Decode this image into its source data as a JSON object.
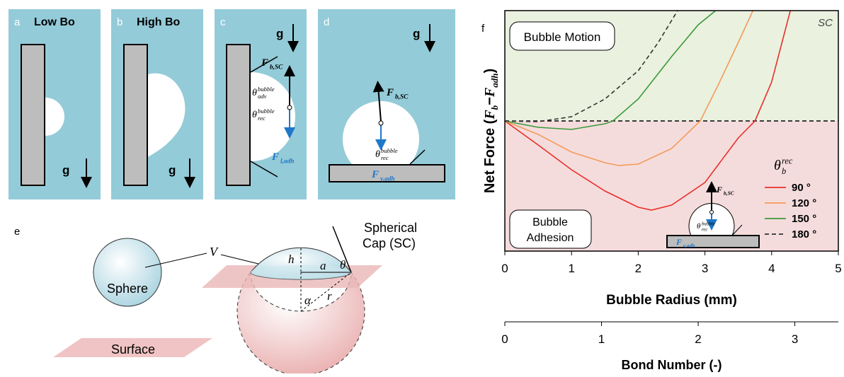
{
  "panels": {
    "a": {
      "label": "a",
      "title": "Low Bo",
      "gravity": "g"
    },
    "b": {
      "label": "b",
      "title": "High Bo",
      "gravity": "g"
    },
    "c": {
      "label": "c",
      "gravity": "g",
      "buoyancy": {
        "symbol": "F",
        "subscript": "b,SC"
      },
      "advancing": {
        "symbol": "θ",
        "superscript": "bubble",
        "subscript": "adv"
      },
      "receding": {
        "symbol": "θ",
        "superscript": "bubble",
        "subscript": "rec"
      },
      "adhesion": {
        "symbol": "F",
        "subscript": "l,adh"
      }
    },
    "d": {
      "label": "d",
      "gravity": "g",
      "buoyancy": {
        "symbol": "F",
        "subscript": "b,SC"
      },
      "receding": {
        "symbol": "θ",
        "superscript": "bubble",
        "subscript": "rec"
      },
      "adhesion": {
        "symbol": "F",
        "subscript": "v,adh"
      }
    },
    "e": {
      "label": "e",
      "sphere": "Sphere",
      "volume": "V",
      "height": "h",
      "base_radius": "a",
      "angle": "θ",
      "alpha": "α",
      "radius": "r",
      "cap": [
        "Spherical",
        "Cap (SC)"
      ],
      "surface": "Surface"
    }
  },
  "chart_data": {
    "type": "line",
    "panel_label": "f",
    "xlabel": "Bubble Radius (mm)",
    "ylabel": {
      "prefix": "Net Force (",
      "term1": {
        "symbol": "F",
        "subscript": "b"
      },
      "operator": "−",
      "term2": {
        "symbol": "F",
        "subscript": "adh"
      },
      "suffix": ")"
    },
    "xlim": [
      0,
      5
    ],
    "xticks": [
      0,
      1,
      2,
      3,
      4,
      5
    ],
    "ylim": [
      -184,
      156
    ],
    "x2label": "Bond Number (-)",
    "x2lim": [
      0,
      3.45
    ],
    "x2ticks": [
      0,
      1,
      2,
      3
    ],
    "annotations": {
      "motion": "Bubble Motion",
      "adhesion": [
        "Bubble",
        "Adhesion"
      ],
      "sc": "SC"
    },
    "region_colors": {
      "motion": "#eaf1df",
      "adhesion": "#f5dcdc"
    },
    "legend_title": {
      "symbol": "θ",
      "subscript": "b",
      "superscript": "rec"
    },
    "series": [
      {
        "name": "90 °",
        "color": "#e8302a",
        "dash": false,
        "x": [
          0,
          0.5,
          1,
          1.5,
          2,
          2.2,
          2.5,
          3,
          3.5,
          3.75,
          4,
          4.28
        ],
        "values": [
          0,
          -34,
          -69,
          -99,
          -122,
          -126,
          -119,
          -87,
          -24,
          0,
          55,
          156
        ]
      },
      {
        "name": "120 °",
        "color": "#f39a5a",
        "dash": false,
        "x": [
          0,
          0.5,
          1,
          1.5,
          1.7,
          2,
          2.5,
          2.93,
          3.2,
          3.5,
          3.72
        ],
        "values": [
          0,
          -19,
          -44,
          -59,
          -63,
          -61,
          -39,
          0,
          51,
          111,
          156
        ]
      },
      {
        "name": "150 °",
        "color": "#3a9a3a",
        "dash": false,
        "x": [
          0,
          0.5,
          1,
          1.5,
          1.62,
          2,
          2.5,
          2.9,
          3.16
        ],
        "values": [
          0,
          -9,
          -12,
          -4,
          0,
          31,
          91,
          136,
          156
        ]
      },
      {
        "name": "180 °",
        "color": "#333333",
        "dash": true,
        "x": [
          0,
          0.5,
          1,
          1.5,
          2,
          2.3,
          2.59
        ],
        "values": [
          0,
          -1,
          6,
          31,
          71,
          111,
          156
        ]
      }
    ],
    "inset": {
      "buoyancy": {
        "symbol": "F",
        "subscript": "b,SC"
      },
      "receding": {
        "symbol": "θ",
        "superscript": "bubble",
        "subscript": "rec"
      },
      "adhesion": {
        "symbol": "F",
        "subscript": "v,adh"
      }
    }
  }
}
